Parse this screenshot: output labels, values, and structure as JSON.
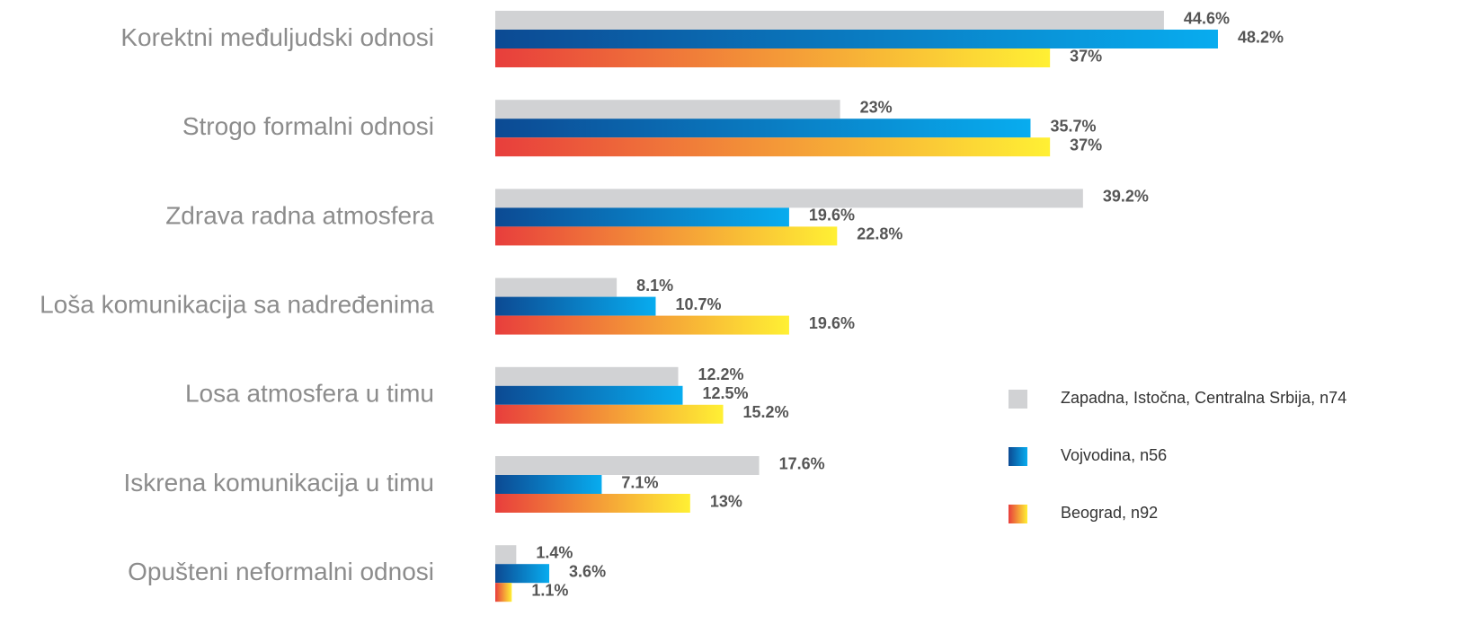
{
  "chart_data": {
    "type": "hbar",
    "categories": [
      "Korektni međuljudski odnosi",
      "Strogo formalni odnosi",
      "Zdrava radna atmosfera",
      "Loša komunikacija sa nadređenima",
      "Losa atmosfera u timu",
      "Iskrena komunikacija u timu",
      "Opušteni neformalni odnosi"
    ],
    "series": [
      {
        "name": "Zapadna, Istočna, Centralna Srbija, n74",
        "color": [
          "#d1d2d4",
          "#d1d2d4"
        ],
        "values": [
          44.6,
          23,
          39.2,
          8.1,
          12.2,
          17.6,
          1.4
        ],
        "value_labels": [
          "44.6%",
          "23%",
          "39.2%",
          "8.1%",
          "12.2%",
          "17.6%",
          "1.4%"
        ]
      },
      {
        "name": "Vojvodina, n56",
        "color": [
          "#0c4a93",
          "#08acef"
        ],
        "values": [
          48.2,
          35.7,
          19.6,
          10.7,
          12.5,
          7.1,
          3.6
        ],
        "value_labels": [
          "48.2%",
          "35.7%",
          "19.6%",
          "10.7%",
          "12.5%",
          "7.1%",
          "3.6%"
        ]
      },
      {
        "name": "Beograd, n92",
        "color": [
          "#e83e3c",
          "#fff034"
        ],
        "values": [
          37,
          37,
          22.8,
          19.6,
          15.2,
          13,
          1.1
        ],
        "value_labels": [
          "37%",
          "37%",
          "22.8%",
          "19.6%",
          "15.2%",
          "13%",
          "1.1%"
        ]
      }
    ]
  }
}
